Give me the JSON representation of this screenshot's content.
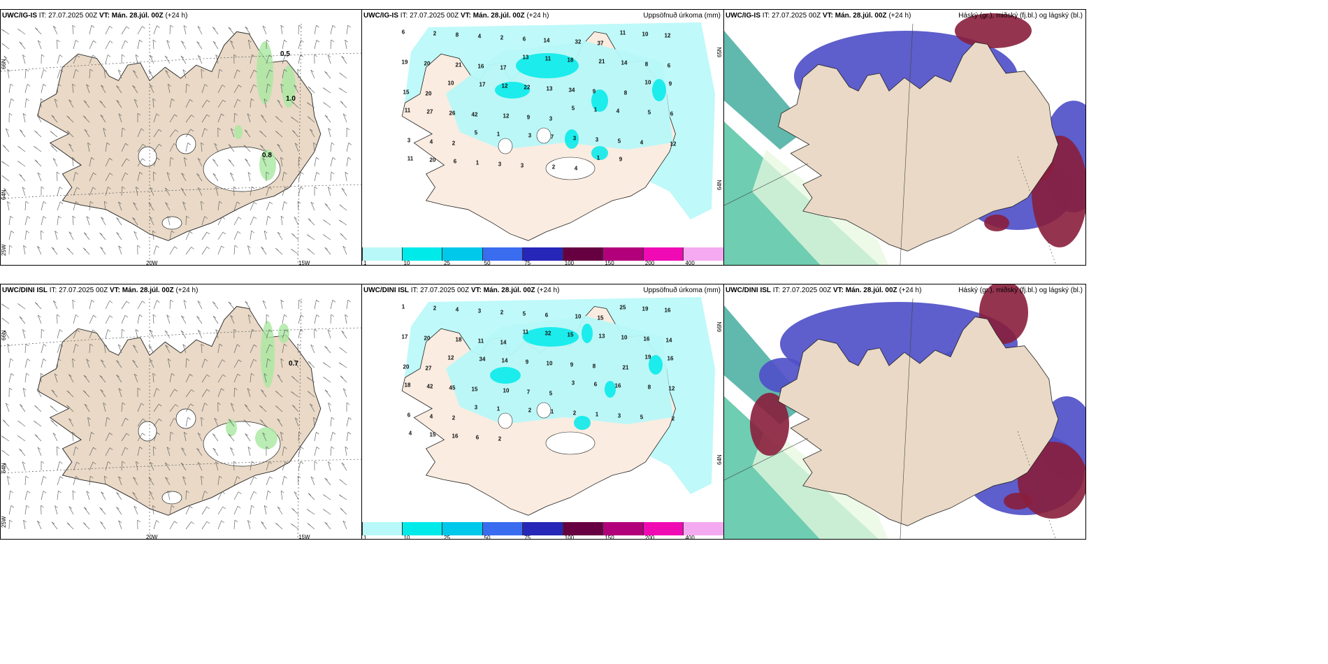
{
  "headers": {
    "wind_ig": {
      "model": "UWC/IG-IS",
      "it": "IT: 27.07.2025 00Z",
      "vt": "VT: Mán. 28.júl. 00Z",
      "lead": "(+24 h)"
    },
    "precip_ig": {
      "model": "UWC/IG-IS",
      "it": "IT: 27.07.2025 00Z",
      "vt": "VT: Mán. 28.júl. 00Z",
      "lead": "(+24 h)",
      "right": "Uppsöfnuð úrkoma (mm)"
    },
    "cloud_ig": {
      "model": "UWC/IG-IS",
      "it": "IT: 27.07.2025 00Z",
      "vt": "VT: Mán. 28.júl. 00Z",
      "lead": "(+24 h)",
      "right": "Háský (gr.), miðský (fj.bl.) og lágský (bl.)"
    },
    "wind_dini": {
      "model": "UWC/DINI ISL",
      "it": "IT: 27.07.2025 00Z",
      "vt": "VT: Mán. 28.júl. 00Z",
      "lead": "(+24 h)"
    },
    "precip_dini": {
      "model": "UWC/DINI ISL",
      "it": "IT: 27.07.2025 00Z",
      "vt": "VT: Mán. 28.júl. 00Z",
      "lead": "(+24 h)",
      "right": "Uppsöfnuð úrkoma (mm)"
    },
    "cloud_dini": {
      "model": "UWC/DINI ISL",
      "it": "IT: 27.07.2025 00Z",
      "vt": "VT: Mán. 28.júl. 00Z",
      "lead": "(+24 h)",
      "right": "Háský (gr.), miðský (fj.bl.) og lágský (bl.)"
    }
  },
  "axis_labels": {
    "lon_20w": "20W",
    "lon_15w": "15W",
    "lon_25w": "25W",
    "lat_66n": "66N",
    "lat_64n": "64N",
    "lat_65n": "65N"
  },
  "wind_values_ig": [
    "0.5",
    "1.0",
    "0.8"
  ],
  "wind_values_dini": [
    "0.7"
  ],
  "colorbar": {
    "ticks": [
      "1",
      "10",
      "25",
      "50",
      "75",
      "100",
      "150",
      "200",
      "400"
    ],
    "colors": [
      "#b8f8f8",
      "#00eaea",
      "#00c8ea",
      "#3a6cf0",
      "#2626b8",
      "#660040",
      "#b2007a",
      "#f00ab4",
      "#f4aaf0"
    ]
  },
  "precip_ig_values": [
    "6",
    "2",
    "8",
    "4",
    "2",
    "6",
    "14",
    "32",
    "37",
    "11",
    "10",
    "12",
    "19",
    "20",
    "21",
    "16",
    "17",
    "13",
    "11",
    "18",
    "21",
    "14",
    "8",
    "6",
    "15",
    "20",
    "10",
    "17",
    "12",
    "22",
    "13",
    "34",
    "9",
    "8",
    "10",
    "9",
    "11",
    "27",
    "26",
    "42",
    "12",
    "9",
    "3",
    "5",
    "1",
    "4",
    "5",
    "6",
    "3",
    "4",
    "2",
    "5",
    "1",
    "3",
    "7",
    "3",
    "3",
    "5",
    "4",
    "12",
    "11",
    "20",
    "6",
    "1",
    "3",
    "3",
    "2",
    "4",
    "1",
    "9"
  ],
  "precip_dini_values": [
    "1",
    "2",
    "4",
    "3",
    "2",
    "5",
    "6",
    "10",
    "15",
    "25",
    "19",
    "16",
    "17",
    "20",
    "18",
    "11",
    "14",
    "11",
    "32",
    "15",
    "13",
    "10",
    "16",
    "14",
    "20",
    "27",
    "12",
    "34",
    "14",
    "9",
    "10",
    "9",
    "8",
    "21",
    "19",
    "16",
    "18",
    "42",
    "45",
    "15",
    "10",
    "7",
    "5",
    "3",
    "6",
    "16",
    "8",
    "12",
    "6",
    "4",
    "2",
    "3",
    "1",
    "2",
    "1",
    "2",
    "1",
    "3",
    "5",
    "2",
    "4",
    "15",
    "16",
    "6",
    "2"
  ],
  "cloud_legend": "Háský (gr.), miðský (fj.bl.) og lágský (bl.)"
}
